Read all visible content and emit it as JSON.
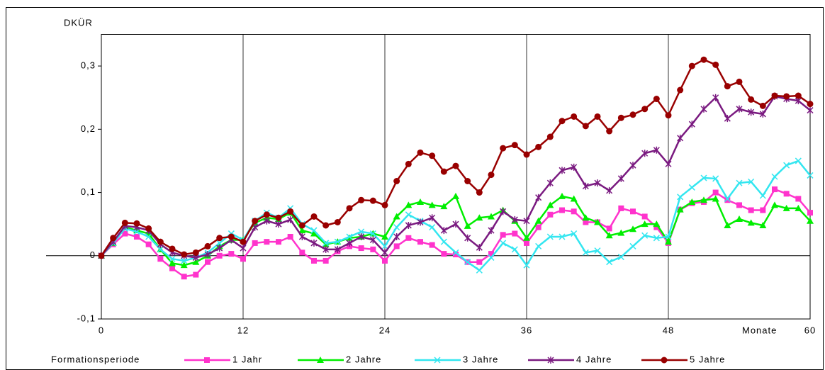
{
  "chart_data": {
    "type": "line",
    "y_label": "DKÜR",
    "x_label": "Monate",
    "legend_title": "Formationsperiode",
    "x": [
      0,
      1,
      2,
      3,
      4,
      5,
      6,
      7,
      8,
      9,
      10,
      11,
      12,
      13,
      14,
      15,
      16,
      17,
      18,
      19,
      20,
      21,
      22,
      23,
      24,
      25,
      26,
      27,
      28,
      29,
      30,
      31,
      32,
      33,
      34,
      35,
      36,
      37,
      38,
      39,
      40,
      41,
      42,
      43,
      44,
      45,
      46,
      47,
      48,
      49,
      50,
      51,
      52,
      53,
      54,
      55,
      56,
      57,
      58,
      59,
      60
    ],
    "xlim": [
      0,
      60
    ],
    "xticks": [
      0,
      12,
      24,
      36,
      48,
      60
    ],
    "ylim": [
      -0.1,
      0.35
    ],
    "yticks": [
      {
        "value": -0.1,
        "label": "-0,1"
      },
      0,
      {
        "value": 0.1,
        "label": "0,1"
      },
      {
        "value": 0.2,
        "label": "0,2"
      },
      {
        "value": 0.3,
        "label": "0,3"
      }
    ],
    "grid": "x",
    "legend": "bottom",
    "series": [
      {
        "name": "1 Jahr",
        "color": "#ff33cc",
        "marker": "square",
        "values": [
          0,
          0.018,
          0.035,
          0.03,
          0.018,
          -0.005,
          -0.02,
          -0.033,
          -0.03,
          -0.01,
          0,
          0.003,
          -0.005,
          0.02,
          0.022,
          0.022,
          0.03,
          0.005,
          -0.008,
          -0.008,
          0.007,
          0.015,
          0.012,
          0.01,
          -0.008,
          0.015,
          0.028,
          0.022,
          0.017,
          0.003,
          0.002,
          -0.01,
          -0.01,
          0.003,
          0.033,
          0.035,
          0.02,
          0.045,
          0.065,
          0.072,
          0.07,
          0.053,
          0.053,
          0.043,
          0.075,
          0.07,
          0.062,
          0.045,
          0.02,
          0.073,
          0.083,
          0.085,
          0.1,
          0.088,
          0.08,
          0.072,
          0.072,
          0.105,
          0.098,
          0.09,
          0.068
        ]
      },
      {
        "name": "2 Jahre",
        "color": "#00ee00",
        "marker": "triangle",
        "values": [
          0,
          0.02,
          0.045,
          0.04,
          0.035,
          0.01,
          -0.012,
          -0.015,
          -0.01,
          0,
          0.015,
          0.025,
          0.025,
          0.052,
          0.06,
          0.058,
          0.068,
          0.04,
          0.035,
          0.018,
          0.022,
          0.028,
          0.03,
          0.035,
          0.03,
          0.062,
          0.08,
          0.085,
          0.08,
          0.078,
          0.094,
          0.047,
          0.06,
          0.062,
          0.072,
          0.055,
          0.028,
          0.055,
          0.08,
          0.094,
          0.09,
          0.06,
          0.053,
          0.032,
          0.036,
          0.042,
          0.05,
          0.05,
          0.022,
          0.073,
          0.085,
          0.088,
          0.09,
          0.048,
          0.058,
          0.052,
          0.048,
          0.08,
          0.075,
          0.075,
          0.055
        ]
      },
      {
        "name": "3 Jahre",
        "color": "#33e6f0",
        "marker": "x",
        "values": [
          0,
          0.02,
          0.043,
          0.038,
          0.03,
          0.01,
          -0.005,
          -0.008,
          -0.003,
          0.005,
          0.02,
          0.035,
          0.025,
          0.055,
          0.068,
          0.06,
          0.075,
          0.05,
          0.04,
          0.02,
          0.022,
          0.03,
          0.038,
          0.035,
          0.015,
          0.045,
          0.065,
          0.055,
          0.045,
          0.022,
          0.005,
          -0.01,
          -0.023,
          -0.003,
          0.02,
          0.01,
          -0.015,
          0.015,
          0.03,
          0.03,
          0.035,
          0.005,
          0.008,
          -0.01,
          -0.002,
          0.015,
          0.032,
          0.028,
          0.03,
          0.093,
          0.108,
          0.123,
          0.122,
          0.09,
          0.115,
          0.117,
          0.095,
          0.125,
          0.143,
          0.15,
          0.127
        ]
      },
      {
        "name": "4 Jahre",
        "color": "#7a1a80",
        "marker": "asterisk",
        "values": [
          0,
          0.022,
          0.047,
          0.045,
          0.04,
          0.018,
          0.005,
          0,
          -0.003,
          0.002,
          0.012,
          0.025,
          0.012,
          0.045,
          0.055,
          0.05,
          0.057,
          0.03,
          0.02,
          0.01,
          0.01,
          0.02,
          0.03,
          0.025,
          0.005,
          0.03,
          0.048,
          0.053,
          0.06,
          0.04,
          0.05,
          0.028,
          0.013,
          0.04,
          0.07,
          0.057,
          0.055,
          0.092,
          0.115,
          0.135,
          0.14,
          0.11,
          0.115,
          0.103,
          0.122,
          0.143,
          0.162,
          0.167,
          0.145,
          0.186,
          0.208,
          0.232,
          0.25,
          0.217,
          0.232,
          0.227,
          0.224,
          0.252,
          0.248,
          0.245,
          0.23
        ]
      },
      {
        "name": "5 Jahre",
        "color": "#990000",
        "marker": "circle",
        "values": [
          0,
          0.028,
          0.052,
          0.051,
          0.043,
          0.022,
          0.011,
          0.002,
          0.005,
          0.015,
          0.028,
          0.03,
          0.022,
          0.055,
          0.065,
          0.06,
          0.07,
          0.048,
          0.062,
          0.048,
          0.053,
          0.075,
          0.088,
          0.087,
          0.08,
          0.118,
          0.145,
          0.163,
          0.158,
          0.133,
          0.142,
          0.118,
          0.1,
          0.128,
          0.17,
          0.175,
          0.16,
          0.172,
          0.188,
          0.213,
          0.22,
          0.205,
          0.22,
          0.197,
          0.218,
          0.223,
          0.232,
          0.248,
          0.222,
          0.262,
          0.3,
          0.31,
          0.302,
          0.268,
          0.275,
          0.247,
          0.237,
          0.253,
          0.252,
          0.253,
          0.24
        ]
      }
    ]
  }
}
